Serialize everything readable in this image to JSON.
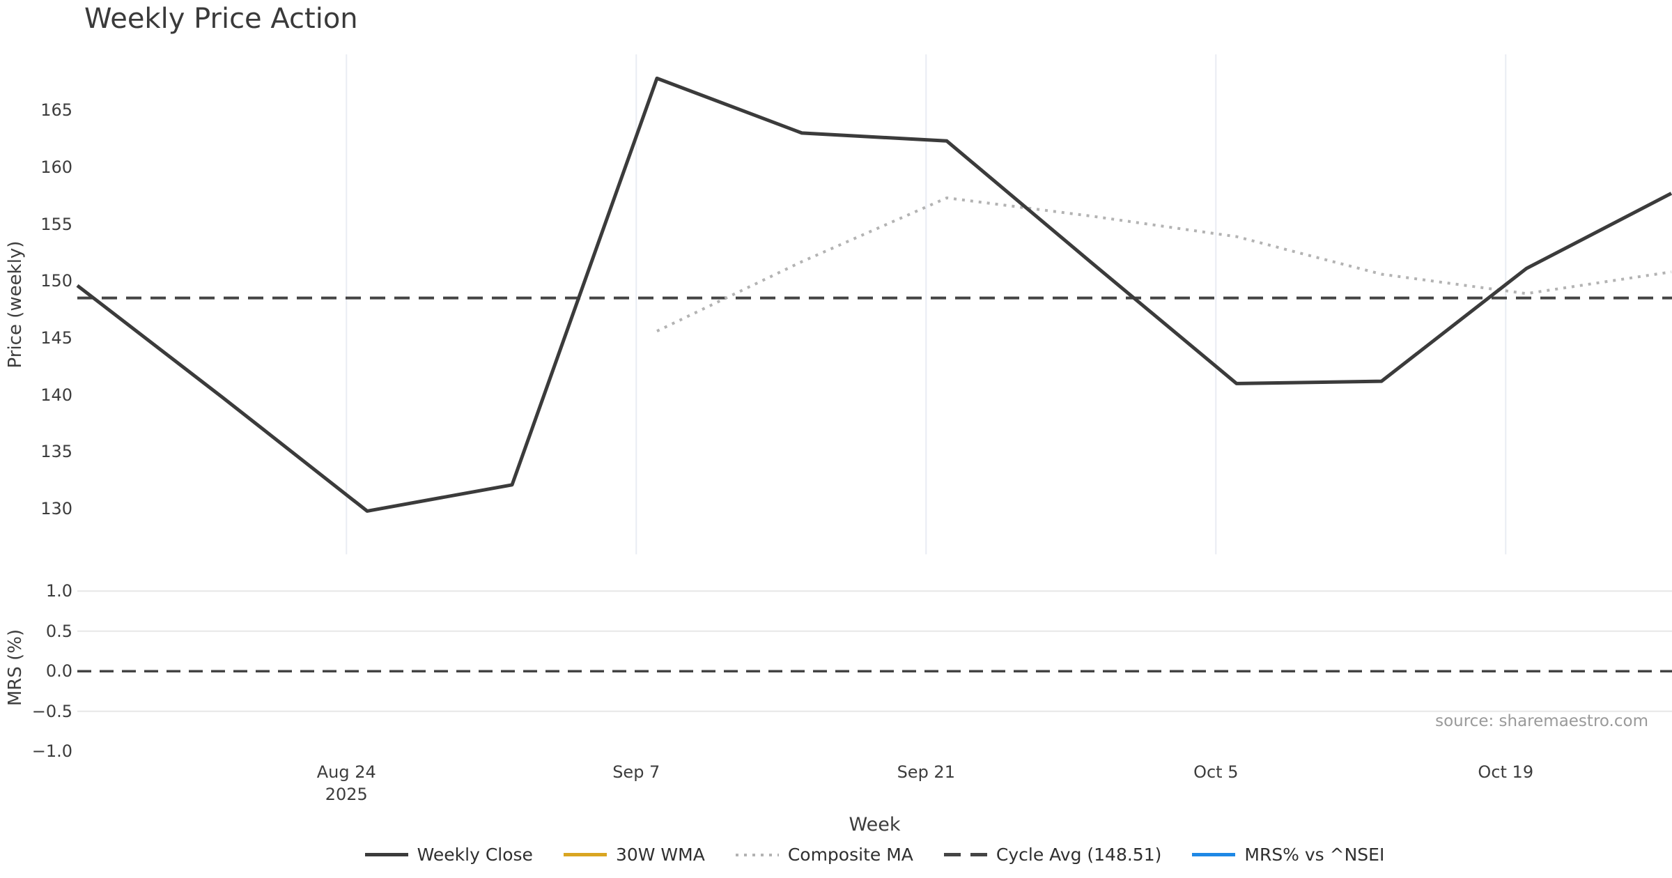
{
  "title": "Weekly Price Action",
  "xlabel": "Week",
  "source_note": "source: sharemaestro.com",
  "colors": {
    "weekly_close": "#3b3b3b",
    "wma_30w": "#d9a521",
    "composite_ma": "#b3b3b3",
    "cycle_avg": "#444444",
    "mrs_line": "#1e88e5",
    "grid_vertical": "#e9ecf3",
    "grid_horizontal": "#e7e7e7",
    "tick_text": "#3d3d3d",
    "source_text": "#9a9a9a"
  },
  "chart_data": [
    {
      "type": "line",
      "panel": "price",
      "title": "Weekly Price Action",
      "ylabel": "Price (weekly)",
      "ylim": [
        126,
        170
      ],
      "xlim_dates": [
        "Aug 11 2025",
        "Oct 27 2025"
      ],
      "grid": "vertical-only",
      "x": [
        "Aug 11",
        "Aug 18",
        "Aug 25",
        "Sep 1",
        "Sep 8",
        "Sep 15",
        "Sep 22",
        "Sep 29",
        "Oct 6",
        "Oct 13",
        "Oct 20",
        "Oct 27"
      ],
      "series": [
        {
          "name": "Weekly Close",
          "style": "solid",
          "color": "#3b3b3b",
          "start_index": 0,
          "values": [
            149.6,
            139.8,
            129.8,
            132.1,
            167.8,
            163.0,
            162.3,
            151.6,
            141.0,
            141.2,
            151.1,
            157.7
          ]
        },
        {
          "name": "30W WMA",
          "style": "solid",
          "color": "#d9a521",
          "start_index": 0,
          "values": [],
          "note": "legend entry only, no data drawn"
        },
        {
          "name": "Composite MA",
          "style": "dotted",
          "color": "#b3b3b3",
          "start_index": 4,
          "values": [
            145.6,
            151.7,
            157.3,
            155.7,
            153.9,
            150.6,
            148.9,
            150.8
          ]
        },
        {
          "name": "Cycle Avg (148.51)",
          "style": "dashed",
          "color": "#444444",
          "constant": 148.51
        }
      ],
      "yticks": [
        "165",
        "160",
        "155",
        "150",
        "145",
        "140",
        "135",
        "130"
      ],
      "ytick_values": [
        165,
        160,
        155,
        150,
        145,
        140,
        135,
        130
      ],
      "xticks": [
        {
          "label": "Aug 24",
          "sublabel": "2025",
          "day": 13
        },
        {
          "label": "Sep 7",
          "sublabel": null,
          "day": 27
        },
        {
          "label": "Sep 21",
          "sublabel": null,
          "day": 41
        },
        {
          "label": "Oct 5",
          "sublabel": null,
          "day": 55
        },
        {
          "label": "Oct 19",
          "sublabel": null,
          "day": 69
        }
      ]
    },
    {
      "type": "line",
      "panel": "mrs",
      "ylabel": "MRS (%)",
      "ylim": [
        -1.0,
        1.1
      ],
      "grid": "horizontal-only",
      "series": [
        {
          "name": "MRS% vs ^NSEI",
          "style": "solid",
          "color": "#1e88e5",
          "values": [],
          "note": "legend entry only, no data drawn"
        },
        {
          "name": "Zero line",
          "style": "dashed",
          "color": "#444444",
          "constant": 0.0
        }
      ],
      "yticks": [
        "1.0",
        "0.5",
        "0.0",
        "−0.5",
        "−1.0"
      ],
      "ytick_values": [
        1.0,
        0.5,
        0.0,
        -0.5,
        -1.0
      ],
      "grid_values": [
        1.0,
        0.5,
        -0.5
      ]
    }
  ],
  "legend": [
    {
      "label": "Weekly Close",
      "style": "solid",
      "color": "#3b3b3b"
    },
    {
      "label": "30W WMA",
      "style": "solid",
      "color": "#d9a521"
    },
    {
      "label": "Composite MA",
      "style": "dotted",
      "color": "#b3b3b3"
    },
    {
      "label": "Cycle Avg (148.51)",
      "style": "dashed",
      "color": "#444444"
    },
    {
      "label": "MRS% vs ^NSEI",
      "style": "solid",
      "color": "#1e88e5"
    }
  ]
}
